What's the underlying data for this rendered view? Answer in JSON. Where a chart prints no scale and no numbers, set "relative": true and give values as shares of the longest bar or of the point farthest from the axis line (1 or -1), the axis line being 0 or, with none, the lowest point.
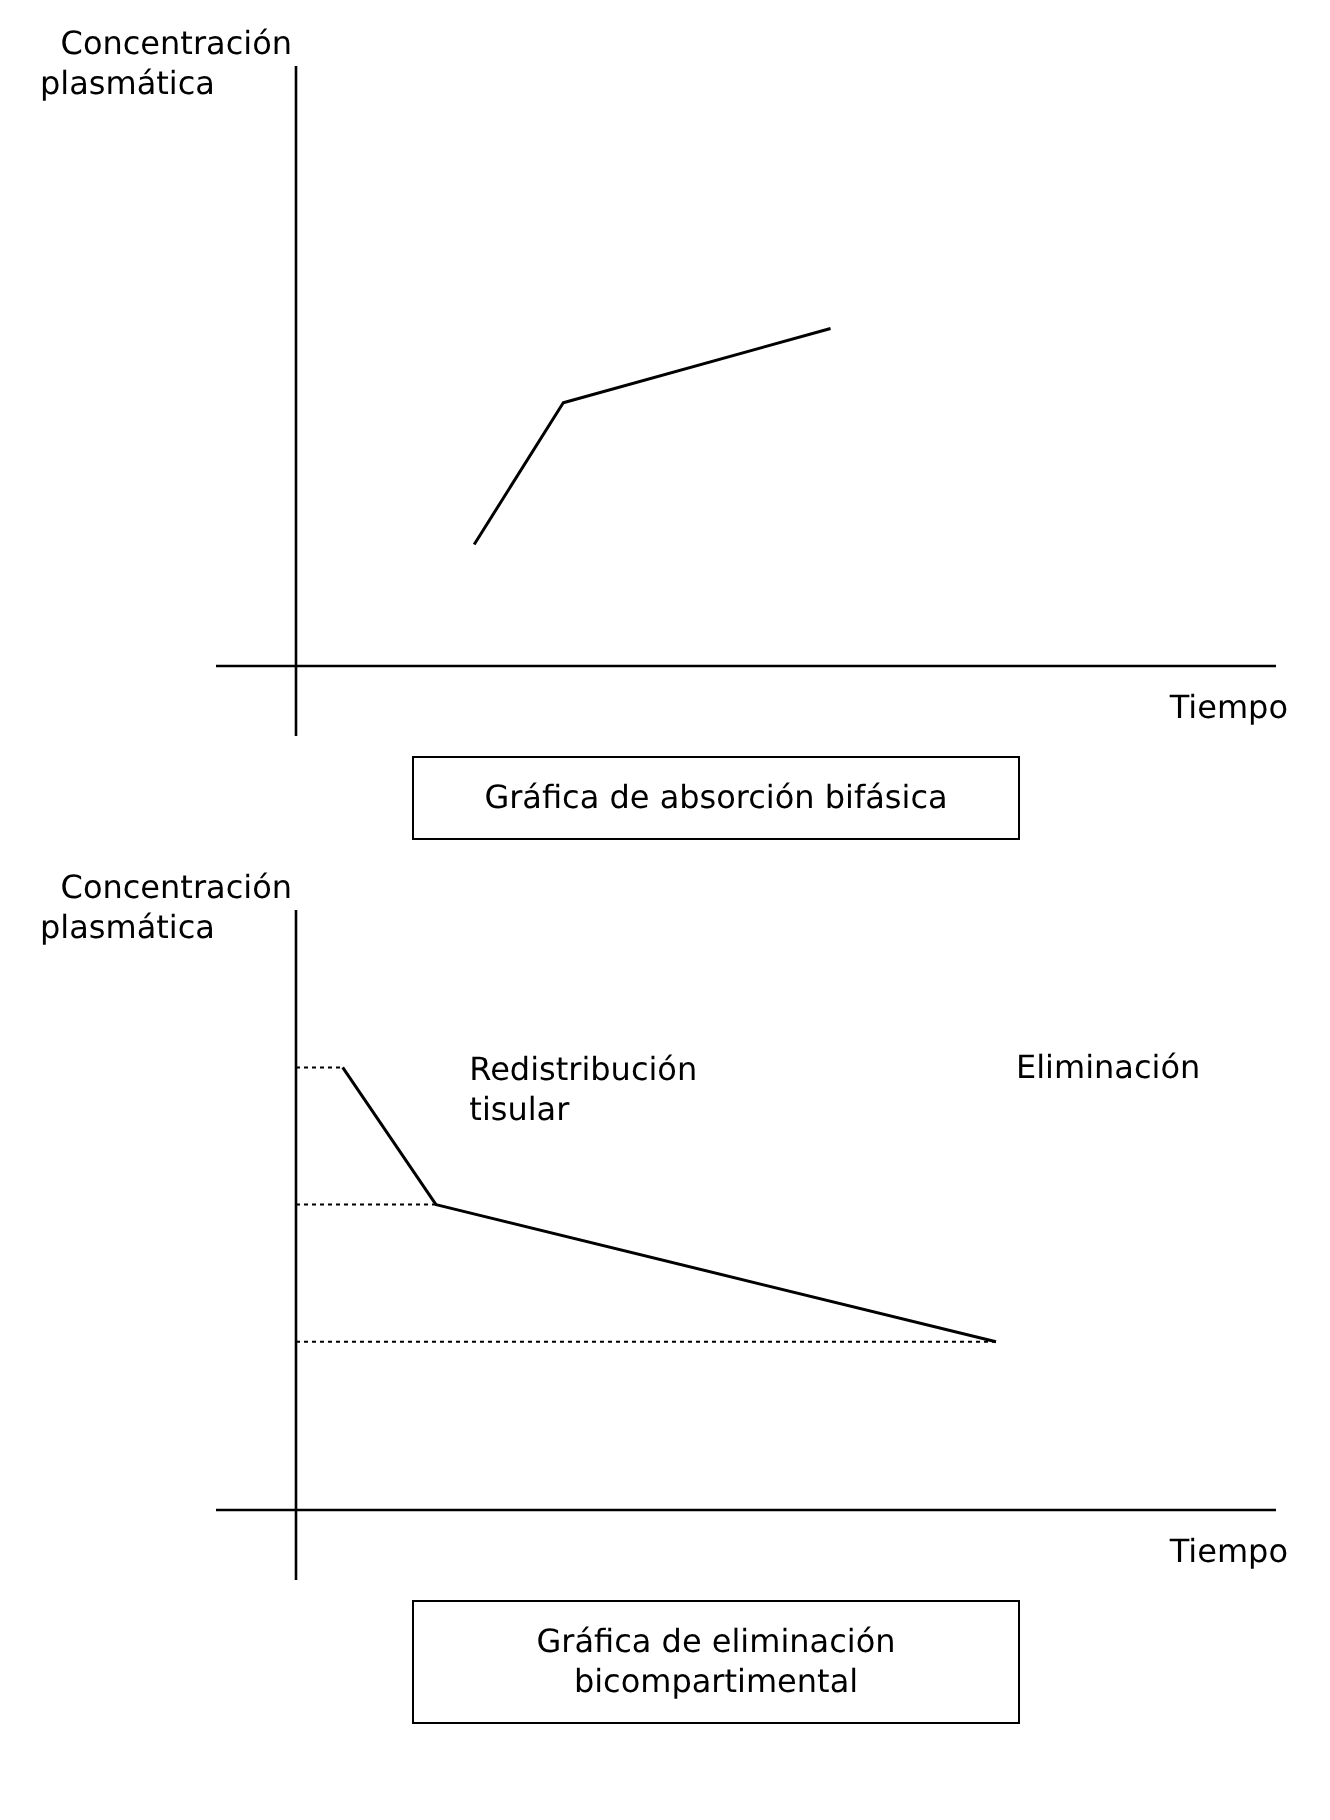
{
  "chart_data": [
    {
      "type": "line",
      "title": "Gráfica de absorción bifásica",
      "ylabel": "Concentración plasmática",
      "xlabel": "Tiempo",
      "relative": true,
      "categories": [
        null,
        null,
        null,
        null,
        null,
        null,
        null,
        null,
        null,
        null,
        null,
        null
      ],
      "series": [
        {
          "color": "#000000",
          "values": [
            null,
            null,
            0.36,
            0.78,
            null,
            null,
            1,
            null,
            null,
            null,
            null,
            null
          ]
        }
      ]
    },
    {
      "type": "line",
      "title": "Gráfica de eliminación bicompartimental",
      "ylabel": "Concentración plasmática",
      "xlabel": "Tiempo",
      "relative": true,
      "categories": [
        null,
        null,
        null,
        null,
        null,
        null,
        null,
        null,
        null,
        null,
        null,
        null,
        null,
        null,
        null,
        null,
        null,
        null,
        null,
        null,
        null,
        null
      ],
      "series": [
        {
          "color": "#000000",
          "values": [
            null,
            1,
            null,
            0.69,
            null,
            null,
            null,
            null,
            null,
            null,
            null,
            null,
            null,
            null,
            null,
            0.38,
            null,
            null,
            null,
            null,
            null,
            null
          ]
        },
        {
          "color": "#000000",
          "line_style": "dotted",
          "values": [
            1,
            1,
            null,
            null,
            null,
            null,
            null,
            null,
            null,
            null,
            null,
            null,
            null,
            null,
            null,
            null,
            null,
            null,
            null,
            null,
            null,
            null
          ]
        },
        {
          "color": "#000000",
          "line_style": "dotted",
          "values": [
            0.69,
            0.69,
            0.69,
            0.69,
            null,
            null,
            null,
            null,
            null,
            null,
            null,
            null,
            null,
            null,
            null,
            null,
            null,
            null,
            null,
            null,
            null,
            null
          ]
        },
        {
          "color": "#000000",
          "line_style": "dotted",
          "values": [
            0.38,
            0.38,
            0.38,
            0.38,
            0.38,
            0.38,
            0.38,
            0.38,
            0.38,
            0.38,
            0.38,
            0.38,
            0.38,
            0.38,
            0.38,
            0.38,
            null,
            null,
            null,
            null,
            null,
            null
          ]
        }
      ],
      "annotations": [
        "Redistribución tisular",
        "Eliminación"
      ]
    }
  ]
}
